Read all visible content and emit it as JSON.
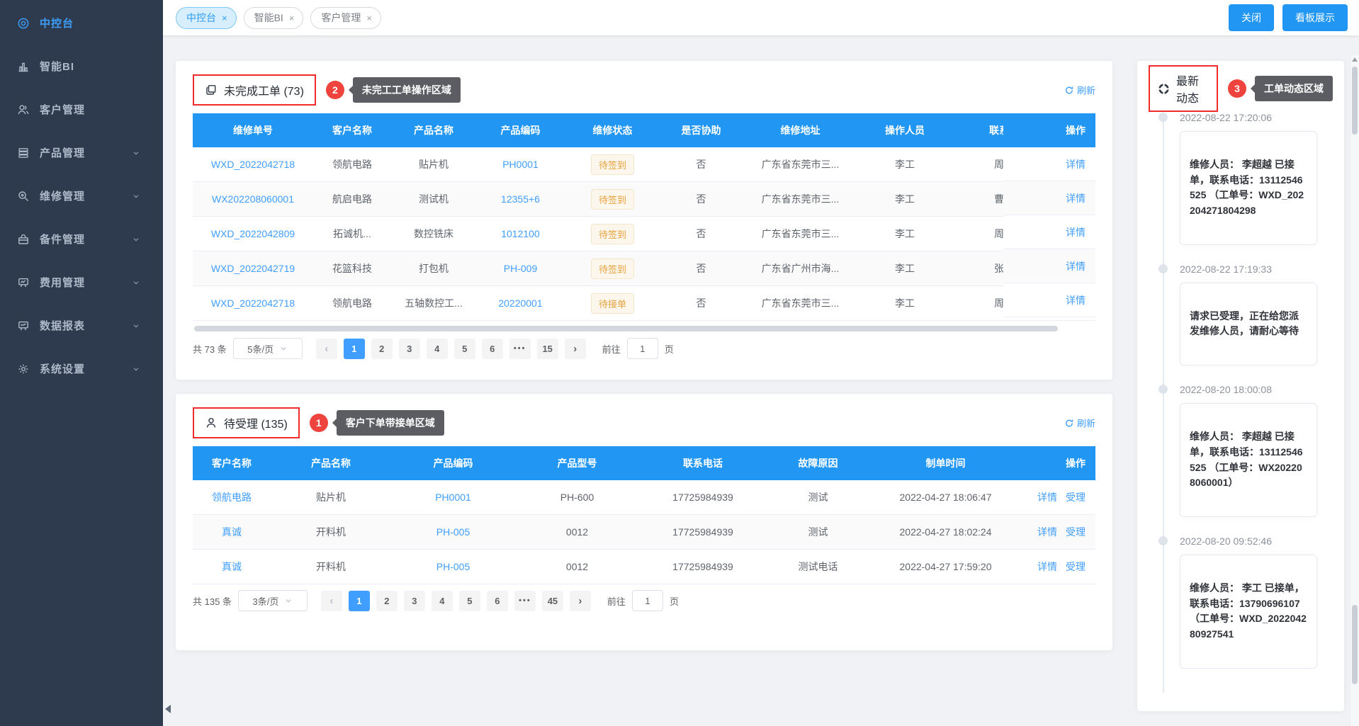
{
  "app": {
    "close_button": "关闭",
    "kanban_button": "看板展示"
  },
  "sidebar": {
    "items": [
      {
        "key": "dashboard",
        "label": "中控台",
        "icon": "dashboard-icon",
        "active": true,
        "expandable": false
      },
      {
        "key": "smart-bi",
        "label": "智能BI",
        "icon": "bi-chart-icon",
        "active": false,
        "expandable": false
      },
      {
        "key": "customers",
        "label": "客户管理",
        "icon": "customers-icon",
        "active": false,
        "expandable": false
      },
      {
        "key": "products",
        "label": "产品管理",
        "icon": "products-icon",
        "active": false,
        "expandable": true
      },
      {
        "key": "repair",
        "label": "维修管理",
        "icon": "repair-icon",
        "active": false,
        "expandable": true
      },
      {
        "key": "spare-parts",
        "label": "备件管理",
        "icon": "spare-parts-icon",
        "active": false,
        "expandable": true
      },
      {
        "key": "expense",
        "label": "费用管理",
        "icon": "expense-icon",
        "active": false,
        "expandable": true
      },
      {
        "key": "reports",
        "label": "数据报表",
        "icon": "reports-icon",
        "active": false,
        "expandable": true
      },
      {
        "key": "settings",
        "label": "系统设置",
        "icon": "settings-icon",
        "active": false,
        "expandable": true
      }
    ]
  },
  "tabs": [
    {
      "key": "dashboard",
      "label": "中控台",
      "active": true
    },
    {
      "key": "smart-bi",
      "label": "智能BI",
      "active": false
    },
    {
      "key": "customers",
      "label": "客户管理",
      "active": false
    }
  ],
  "incomplete": {
    "title": "未完成工单 (73)",
    "icon": "document-icon",
    "annotation_badge": "2",
    "annotation_text": "未完工工单操作区域",
    "refresh_label": "刷新",
    "columns": [
      "维修单号",
      "客户名称",
      "产品名称",
      "产品编码",
      "维修状态",
      "是否协助",
      "维修地址",
      "操作人员",
      "联系人"
    ],
    "action_column": "操作",
    "action_label": "详情",
    "rows": [
      {
        "order_no": "WXD_2022042718",
        "customer": "领航电路",
        "product": "贴片机",
        "code": "PH0001",
        "status": "待签到",
        "assist": "否",
        "address": "广东省东莞市三...",
        "operator": "李工",
        "contact": "周明"
      },
      {
        "order_no": "WX202208060001",
        "customer": "航启电路",
        "product": "测试机",
        "code": "12355+6",
        "status": "待签到",
        "assist": "否",
        "address": "广东省东莞市三...",
        "operator": "李工",
        "contact": "曹工"
      },
      {
        "order_no": "WXD_2022042809",
        "customer": "拓诚机...",
        "product": "数控铣床",
        "code": "1012100",
        "status": "待签到",
        "assist": "否",
        "address": "广东省东莞市三...",
        "operator": "李工",
        "contact": "周明"
      },
      {
        "order_no": "WXD_2022042719",
        "customer": "花篮科技",
        "product": "打包机",
        "code": "PH-009",
        "status": "待签到",
        "assist": "否",
        "address": "广东省广州市海...",
        "operator": "李工",
        "contact": "张三"
      },
      {
        "order_no": "WXD_2022042718",
        "customer": "领航电路",
        "product": "五轴数控工...",
        "code": "20220001",
        "status": "待接单",
        "assist": "否",
        "address": "广东省东莞市三...",
        "operator": "李工",
        "contact": "周明"
      }
    ],
    "pagination": {
      "total": "共 73 条",
      "page_size": "5条/页",
      "pages": [
        "1",
        "2",
        "3",
        "4",
        "5",
        "6",
        "•••",
        "15"
      ],
      "active": "1",
      "goto": "前往",
      "goto_value": "1",
      "unit": "页"
    }
  },
  "pending": {
    "title": "待受理 (135)",
    "icon": "user-icon",
    "annotation_badge": "1",
    "annotation_text": "客户下单带接单区域",
    "refresh_label": "刷新",
    "columns": [
      "客户名称",
      "产品名称",
      "产品编码",
      "产品型号",
      "联系电话",
      "故障原因",
      "制单时间"
    ],
    "action_column": "操作",
    "action_labels": [
      "详情",
      "受理"
    ],
    "rows": [
      {
        "customer": "领航电路",
        "product": "贴片机",
        "code": "PH0001",
        "model": "PH-600",
        "phone": "17725984939",
        "fault": "测试",
        "created": "2022-04-27 18:06:47"
      },
      {
        "customer": "真诚",
        "product": "开料机",
        "code": "PH-005",
        "model": "0012",
        "phone": "17725984939",
        "fault": "测试",
        "created": "2022-04-27 18:02:24"
      },
      {
        "customer": "真诚",
        "product": "开料机",
        "code": "PH-005",
        "model": "0012",
        "phone": "17725984939",
        "fault": "测试电话",
        "created": "2022-04-27 17:59:20"
      }
    ],
    "pagination": {
      "total": "共 135 条",
      "page_size": "3条/页",
      "pages": [
        "1",
        "2",
        "3",
        "4",
        "5",
        "6",
        "•••",
        "45"
      ],
      "active": "1",
      "goto": "前往",
      "goto_value": "1",
      "unit": "页"
    }
  },
  "activity": {
    "title": "最新动态",
    "icon": "activity-icon",
    "annotation_badge": "3",
    "annotation_text": "工单动态区域",
    "items": [
      {
        "time": "2022-08-22 17:20:06",
        "text": "维修人员： 李超越 已接单，联系电话：13112546525 （工单号：WXD_202204271804298"
      },
      {
        "time": "2022-08-22 17:19:33",
        "text": "请求已受理，正在给您派发维修人员，请耐心等待"
      },
      {
        "time": "2022-08-20 18:00:08",
        "text": "维修人员： 李超越 已接单，联系电话：13112546525 （工单号：WX202208060001）"
      },
      {
        "time": "2022-08-20 09:52:46",
        "text": "维修人员： 李工 已接单，联系电话：13790696107 （工单号：WXD_202204280927541"
      }
    ]
  },
  "colors": {
    "primary": "#2196f3",
    "link": "#409eff",
    "danger": "#f12c2c",
    "warning": "#e6a23c",
    "sidebar_bg": "#2e3a4e"
  }
}
